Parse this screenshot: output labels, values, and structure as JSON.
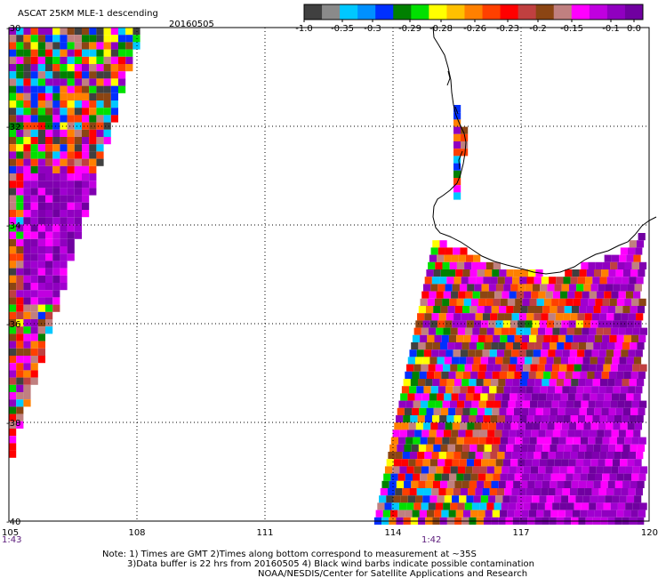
{
  "title": "ASCAT 25KM MLE-1 descending",
  "date": "20160505",
  "colorbar": {
    "colors": [
      "#404040",
      "#8a8a8a",
      "#00c8ff",
      "#0090ff",
      "#0030ff",
      "#008000",
      "#00e000",
      "#ffff00",
      "#ffc000",
      "#ff8000",
      "#ff4000",
      "#ff0000",
      "#c04040",
      "#8b4513",
      "#c08080",
      "#ff00ff",
      "#c000e0",
      "#9000c0",
      "#7000a0"
    ],
    "labels": [
      "-1.0",
      "-0.35",
      "-0.3",
      "-0.29",
      "-0.28",
      "-0.26",
      "-0.23",
      "-0.2",
      "-0.15",
      "-0.1",
      "0.0"
    ]
  },
  "map": {
    "lon_ticks": [
      "105",
      "108",
      "111",
      "114",
      "117",
      "120"
    ],
    "lat_ticks": [
      "-30",
      "-32",
      "-34",
      "-36",
      "-38",
      "-40"
    ],
    "time_labels": [
      {
        "text": "1:43",
        "lon": 105
      },
      {
        "text": "1:42",
        "lon": 114.9
      }
    ]
  },
  "notes": [
    "Note: 1) Times are GMT 2)Times along bottom correspond to measurement at ~35S",
    "3)Data buffer is 22 hrs from 20160505 4) Black wind barbs indicate possible contamination",
    "NOAA/NESDIS/Center for Satellite Applications and Research"
  ]
}
